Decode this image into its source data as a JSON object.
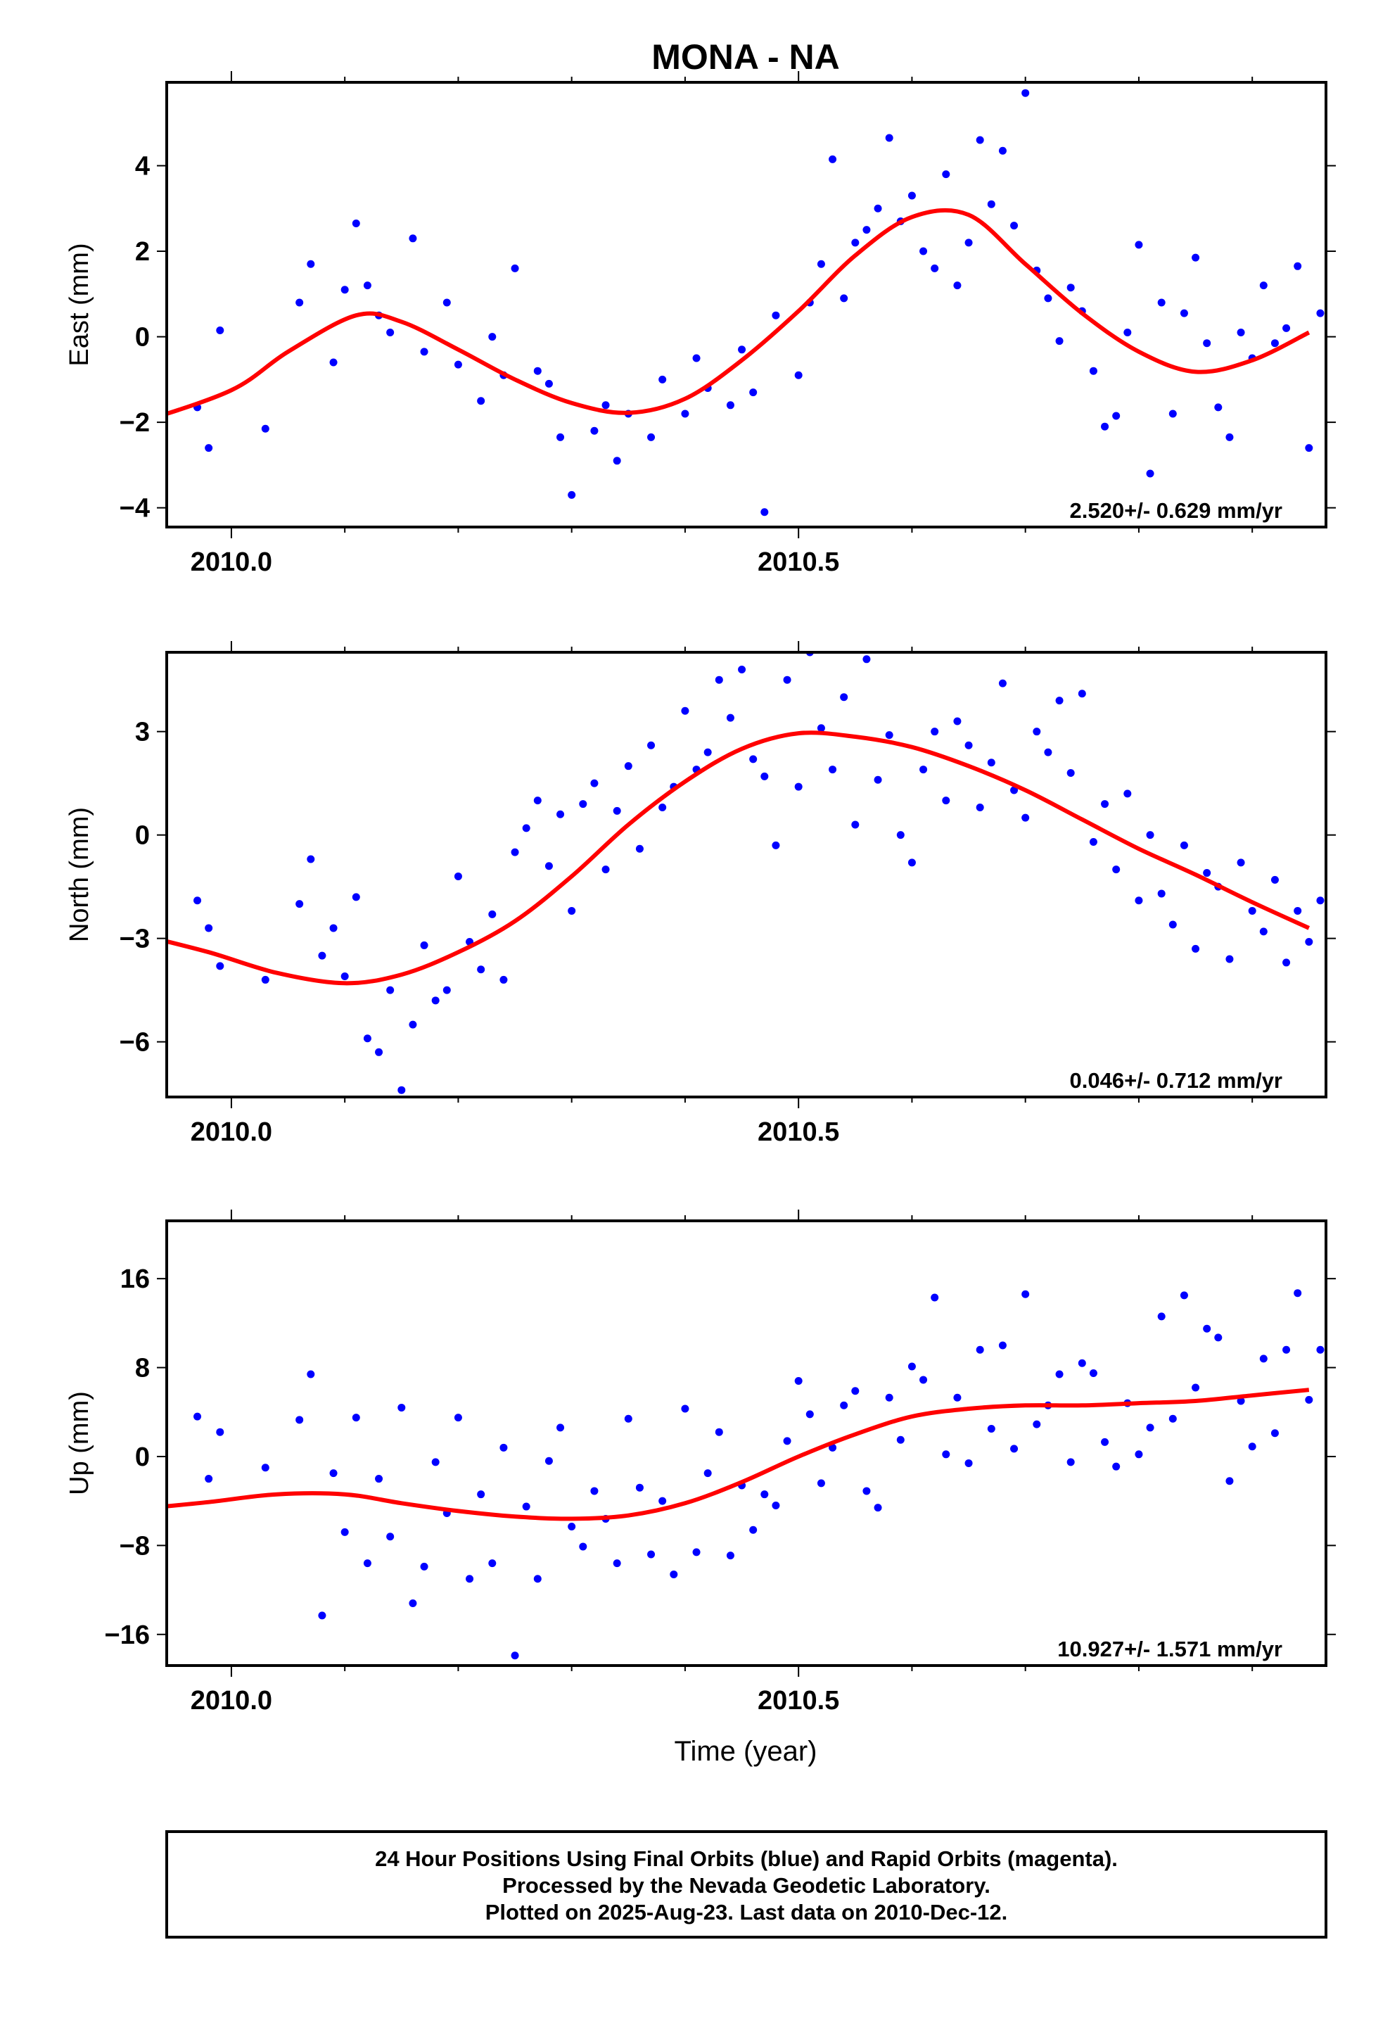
{
  "title": "MONA - NA",
  "x_axis": {
    "label": "Time (year)",
    "ticks": [
      "2010.0",
      "2010.5"
    ]
  },
  "footer": [
    "24 Hour Positions Using Final Orbits (blue) and Rapid Orbits (magenta).",
    "Processed by the Nevada Geodetic Laboratory.",
    "Plotted on 2025-Aug-23. Last data on 2010-Dec-12."
  ],
  "colors": {
    "final_orbits": "#0000ff",
    "rapid_orbits": "#ff00ff",
    "model": "#ff0000",
    "frame": "#000000"
  },
  "chart_data": [
    {
      "type": "scatter",
      "ylabel": "East (mm)",
      "rate_label": "2.520+/- 0.629 mm/yr",
      "xlim": [
        2009.943,
        2010.965
      ],
      "ylim": [
        -4.45,
        5.95
      ],
      "yticks": [
        -4,
        -2,
        0,
        2,
        4
      ],
      "ytick_labels": [
        "−4",
        "−2",
        "0",
        "2",
        "4"
      ],
      "model": {
        "x": [
          2009.92,
          2010.0,
          2010.05,
          2010.11,
          2010.15,
          2010.2,
          2010.25,
          2010.3,
          2010.35,
          2010.4,
          2010.45,
          2010.5,
          2010.55,
          2010.6,
          2010.65,
          2010.7,
          2010.75,
          2010.8,
          2010.85,
          2010.9,
          2010.95
        ],
        "y": [
          -2.0,
          -1.25,
          -0.35,
          0.5,
          0.35,
          -0.3,
          -1.0,
          -1.55,
          -1.78,
          -1.45,
          -0.55,
          0.6,
          1.9,
          2.8,
          2.85,
          1.7,
          0.55,
          -0.35,
          -0.82,
          -0.55,
          0.1
        ]
      },
      "series": [
        {
          "color": "#0000ff",
          "x": [
            2009.97,
            2009.98,
            2009.99,
            2010.03,
            2010.06,
            2010.07,
            2010.09,
            2010.1,
            2010.11,
            2010.12,
            2010.13,
            2010.14,
            2010.16,
            2010.17,
            2010.19,
            2010.2,
            2010.22,
            2010.23,
            2010.24,
            2010.25,
            2010.27,
            2010.28,
            2010.29,
            2010.3,
            2010.32,
            2010.33,
            2010.34,
            2010.35,
            2010.37,
            2010.38,
            2010.4,
            2010.41,
            2010.42,
            2010.44,
            2010.45,
            2010.46,
            2010.47,
            2010.48,
            2010.5,
            2010.51,
            2010.52,
            2010.53,
            2010.54,
            2010.55,
            2010.56,
            2010.57,
            2010.58,
            2010.59,
            2010.6,
            2010.61,
            2010.62,
            2010.63,
            2010.64,
            2010.65,
            2010.66,
            2010.67,
            2010.68,
            2010.69,
            2010.7,
            2010.71,
            2010.72,
            2010.73,
            2010.74,
            2010.75,
            2010.76,
            2010.77,
            2010.78,
            2010.79,
            2010.8,
            2010.81,
            2010.82,
            2010.83,
            2010.84,
            2010.85,
            2010.86,
            2010.87,
            2010.88,
            2010.89,
            2010.9,
            2010.91,
            2010.92,
            2010.93,
            2010.94,
            2010.95,
            2010.96
          ],
          "y": [
            -1.65,
            -2.6,
            0.15,
            -2.15,
            0.8,
            1.7,
            -0.6,
            1.1,
            2.65,
            1.2,
            0.5,
            0.1,
            2.3,
            -0.35,
            0.8,
            -0.65,
            -1.5,
            0.0,
            -0.9,
            1.6,
            -0.8,
            -1.1,
            -2.35,
            -3.7,
            -2.2,
            -1.6,
            -2.9,
            -1.8,
            -2.35,
            -1.0,
            -1.8,
            -0.5,
            -1.2,
            -1.6,
            -0.3,
            -1.3,
            -4.1,
            0.5,
            -0.9,
            0.8,
            1.7,
            4.15,
            0.9,
            2.2,
            2.5,
            3.0,
            4.65,
            2.7,
            3.3,
            2.0,
            1.6,
            3.8,
            1.2,
            2.2,
            4.6,
            3.1,
            4.35,
            2.6,
            5.7,
            1.55,
            0.9,
            -0.1,
            1.15,
            0.6,
            -0.8,
            -2.1,
            -1.85,
            0.1,
            2.15,
            -3.2,
            0.8,
            -1.8,
            0.55,
            1.85,
            -0.15,
            -1.65,
            -2.35,
            0.1,
            -0.5,
            1.2,
            -0.15,
            0.2,
            1.65,
            -2.6,
            0.55
          ]
        }
      ]
    },
    {
      "type": "scatter",
      "ylabel": "North (mm)",
      "rate_label": "0.046+/- 0.712 mm/yr",
      "xlim": [
        2009.943,
        2010.965
      ],
      "ylim": [
        -7.6,
        5.3
      ],
      "yticks": [
        -6,
        -3,
        0,
        3
      ],
      "ytick_labels": [
        "−6",
        "−3",
        "0",
        "3"
      ],
      "model": {
        "x": [
          2009.92,
          2009.98,
          2010.04,
          2010.1,
          2010.15,
          2010.2,
          2010.25,
          2010.3,
          2010.35,
          2010.4,
          2010.45,
          2010.5,
          2010.55,
          2010.6,
          2010.65,
          2010.7,
          2010.75,
          2010.8,
          2010.85,
          2010.9,
          2010.95
        ],
        "y": [
          -2.9,
          -3.4,
          -4.0,
          -4.3,
          -4.05,
          -3.4,
          -2.5,
          -1.2,
          0.3,
          1.55,
          2.5,
          2.95,
          2.85,
          2.55,
          2.0,
          1.3,
          0.45,
          -0.4,
          -1.15,
          -1.95,
          -2.7
        ]
      },
      "series": [
        {
          "color": "#0000ff",
          "x": [
            2009.97,
            2009.98,
            2009.99,
            2010.03,
            2010.06,
            2010.07,
            2010.08,
            2010.09,
            2010.1,
            2010.11,
            2010.12,
            2010.13,
            2010.14,
            2010.15,
            2010.16,
            2010.17,
            2010.18,
            2010.19,
            2010.2,
            2010.21,
            2010.22,
            2010.23,
            2010.24,
            2010.25,
            2010.26,
            2010.27,
            2010.28,
            2010.29,
            2010.3,
            2010.31,
            2010.32,
            2010.33,
            2010.34,
            2010.35,
            2010.36,
            2010.37,
            2010.38,
            2010.39,
            2010.4,
            2010.41,
            2010.42,
            2010.43,
            2010.44,
            2010.45,
            2010.46,
            2010.47,
            2010.48,
            2010.49,
            2010.5,
            2010.51,
            2010.52,
            2010.53,
            2010.54,
            2010.55,
            2010.56,
            2010.57,
            2010.58,
            2010.59,
            2010.6,
            2010.61,
            2010.62,
            2010.63,
            2010.64,
            2010.65,
            2010.66,
            2010.67,
            2010.68,
            2010.69,
            2010.7,
            2010.71,
            2010.72,
            2010.73,
            2010.74,
            2010.75,
            2010.76,
            2010.77,
            2010.78,
            2010.79,
            2010.8,
            2010.81,
            2010.82,
            2010.83,
            2010.84,
            2010.85,
            2010.86,
            2010.87,
            2010.88,
            2010.89,
            2010.9,
            2010.91,
            2010.92,
            2010.93,
            2010.94,
            2010.95,
            2010.96
          ],
          "y": [
            -1.9,
            -2.7,
            -3.8,
            -4.2,
            -2.0,
            -0.7,
            -3.5,
            -2.7,
            -4.1,
            -1.8,
            -5.9,
            -6.3,
            -4.5,
            -7.4,
            -5.5,
            -3.2,
            -4.8,
            -4.5,
            -1.2,
            -3.1,
            -3.9,
            -2.3,
            -4.2,
            -0.5,
            0.2,
            1.0,
            -0.9,
            0.6,
            -2.2,
            0.9,
            1.5,
            -1.0,
            0.7,
            2.0,
            -0.4,
            2.6,
            0.8,
            1.4,
            3.6,
            1.9,
            2.4,
            4.5,
            3.4,
            4.8,
            2.2,
            1.7,
            -0.3,
            4.5,
            1.4,
            5.3,
            3.1,
            1.9,
            4.0,
            0.3,
            5.1,
            1.6,
            2.9,
            0.0,
            -0.8,
            1.9,
            3.0,
            1.0,
            3.3,
            2.6,
            0.8,
            2.1,
            4.4,
            1.3,
            0.5,
            3.0,
            2.4,
            3.9,
            1.8,
            4.1,
            -0.2,
            0.9,
            -1.0,
            1.2,
            -1.9,
            0.0,
            -1.7,
            -2.6,
            -0.3,
            -3.3,
            -1.1,
            -1.5,
            -3.6,
            -0.8,
            -2.2,
            -2.8,
            -1.3,
            -3.7,
            -2.2,
            -3.1,
            -1.9
          ]
        }
      ]
    },
    {
      "type": "scatter",
      "ylabel": "Up (mm)",
      "rate_label": "10.927+/- 1.571 mm/yr",
      "xlim": [
        2009.943,
        2010.965
      ],
      "ylim": [
        -18.8,
        21.2
      ],
      "yticks": [
        -16,
        -8,
        0,
        8,
        16
      ],
      "ytick_labels": [
        "−16",
        "−8",
        "0",
        "8",
        "16"
      ],
      "model": {
        "x": [
          2009.92,
          2009.98,
          2010.04,
          2010.1,
          2010.15,
          2010.2,
          2010.25,
          2010.3,
          2010.35,
          2010.4,
          2010.45,
          2010.5,
          2010.55,
          2010.6,
          2010.65,
          2010.7,
          2010.75,
          2010.8,
          2010.85,
          2010.9,
          2010.95
        ],
        "y": [
          -4.7,
          -4.1,
          -3.4,
          -3.4,
          -4.2,
          -4.9,
          -5.4,
          -5.6,
          -5.3,
          -4.2,
          -2.3,
          0.0,
          2.0,
          3.6,
          4.3,
          4.6,
          4.6,
          4.8,
          5.0,
          5.5,
          6.0
        ]
      },
      "series": [
        {
          "color": "#0000ff",
          "x": [
            2009.97,
            2009.98,
            2009.99,
            2010.03,
            2010.06,
            2010.07,
            2010.08,
            2010.09,
            2010.1,
            2010.11,
            2010.12,
            2010.13,
            2010.14,
            2010.15,
            2010.16,
            2010.17,
            2010.18,
            2010.19,
            2010.2,
            2010.21,
            2010.22,
            2010.23,
            2010.24,
            2010.25,
            2010.26,
            2010.27,
            2010.28,
            2010.29,
            2010.3,
            2010.31,
            2010.32,
            2010.33,
            2010.34,
            2010.35,
            2010.36,
            2010.37,
            2010.38,
            2010.39,
            2010.4,
            2010.41,
            2010.42,
            2010.43,
            2010.44,
            2010.45,
            2010.46,
            2010.47,
            2010.48,
            2010.49,
            2010.5,
            2010.51,
            2010.52,
            2010.53,
            2010.54,
            2010.55,
            2010.56,
            2010.57,
            2010.58,
            2010.59,
            2010.6,
            2010.61,
            2010.62,
            2010.63,
            2010.64,
            2010.65,
            2010.66,
            2010.67,
            2010.68,
            2010.69,
            2010.7,
            2010.71,
            2010.72,
            2010.73,
            2010.74,
            2010.75,
            2010.76,
            2010.77,
            2010.78,
            2010.79,
            2010.8,
            2010.81,
            2010.82,
            2010.83,
            2010.84,
            2010.85,
            2010.86,
            2010.87,
            2010.88,
            2010.89,
            2010.9,
            2010.91,
            2010.92,
            2010.93,
            2010.94,
            2010.95,
            2010.96
          ],
          "y": [
            3.6,
            -2.0,
            2.2,
            -1.0,
            3.3,
            7.4,
            -14.3,
            -1.5,
            -6.8,
            3.5,
            -9.6,
            -2.0,
            -7.2,
            4.4,
            -13.2,
            -9.9,
            -0.5,
            -5.1,
            3.5,
            -11.0,
            -3.4,
            -9.6,
            0.8,
            -17.9,
            -4.5,
            -11.0,
            -0.4,
            2.6,
            -6.3,
            -8.1,
            -3.1,
            -5.6,
            -9.6,
            3.4,
            -2.8,
            -8.8,
            -4.0,
            -10.6,
            4.3,
            -8.6,
            -1.5,
            2.2,
            -8.9,
            -2.6,
            -6.6,
            -3.4,
            -4.4,
            1.4,
            6.8,
            3.8,
            -2.4,
            0.8,
            4.6,
            5.9,
            -3.1,
            -4.6,
            5.3,
            1.5,
            8.1,
            6.9,
            14.3,
            0.2,
            5.3,
            -0.6,
            9.6,
            2.5,
            10.0,
            0.7,
            14.6,
            2.9,
            4.6,
            7.4,
            -0.5,
            8.4,
            7.5,
            1.3,
            -0.9,
            4.8,
            0.2,
            2.6,
            12.6,
            3.4,
            14.5,
            6.2,
            11.5,
            10.7,
            -2.2,
            5.0,
            0.9,
            8.8,
            2.1,
            9.6,
            14.7,
            5.1,
            9.6
          ]
        }
      ]
    }
  ]
}
